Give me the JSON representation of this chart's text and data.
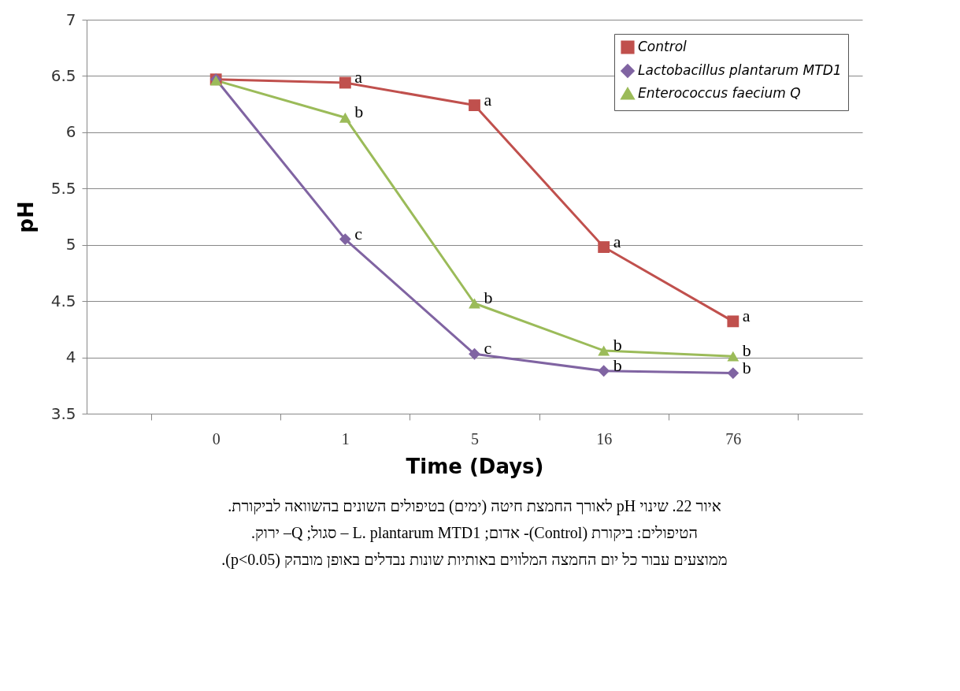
{
  "chart_data": {
    "type": "line",
    "xlabel": "Time (Days)",
    "ylabel": "pH",
    "categories": [
      "0",
      "1",
      "5",
      "16",
      "76"
    ],
    "ylim": [
      3.5,
      7
    ],
    "yticks": [
      3.5,
      4,
      4.5,
      5,
      5.5,
      6,
      6.5,
      7
    ],
    "grid": "y",
    "legend": "top right",
    "series": [
      {
        "name": "Control",
        "color": "#c0504d",
        "marker": "square",
        "values": [
          6.47,
          6.44,
          6.24,
          4.98,
          4.32
        ]
      },
      {
        "name": "Lactobacillus plantarum MTD1",
        "color": "#8064a2",
        "marker": "diamond",
        "values": [
          6.47,
          5.05,
          4.03,
          3.88,
          3.86
        ]
      },
      {
        "name": "Enterococcus faecium  Q",
        "color": "#9bbb59",
        "marker": "triangle",
        "values": [
          6.46,
          6.13,
          4.48,
          4.06,
          4.01
        ]
      }
    ],
    "annotations": [
      {
        "text": "a",
        "x": "1",
        "y": 6.44
      },
      {
        "text": "a",
        "x": "5",
        "y": 6.24
      },
      {
        "text": "a",
        "x": "16",
        "y": 4.98
      },
      {
        "text": "a",
        "x": "76",
        "y": 4.32
      },
      {
        "text": "c",
        "x": "1",
        "y": 5.05
      },
      {
        "text": "c",
        "x": "5",
        "y": 4.03
      },
      {
        "text": "b",
        "x": "16",
        "y": 3.88
      },
      {
        "text": "b",
        "x": "76",
        "y": 3.86
      },
      {
        "text": "b",
        "x": "1",
        "y": 6.13
      },
      {
        "text": "b",
        "x": "5",
        "y": 4.48
      },
      {
        "text": "b",
        "x": "16",
        "y": 4.06
      },
      {
        "text": "b",
        "x": "76",
        "y": 4.01
      },
      "איור 22. שינוי pH לאורך החמצת חיטה (ימים) בטיפולים השונים בהשוואה לביקורת.",
      "הטיפולים: ביקורת (Control)- אדום; L. plantarum MTD1 – סגול; Q– ירוק.",
      "ממוצעים עבור כל יום החמצה המלווים באותיות שונות נבדלים באופן מובהק (p<0.05)."
    ]
  }
}
